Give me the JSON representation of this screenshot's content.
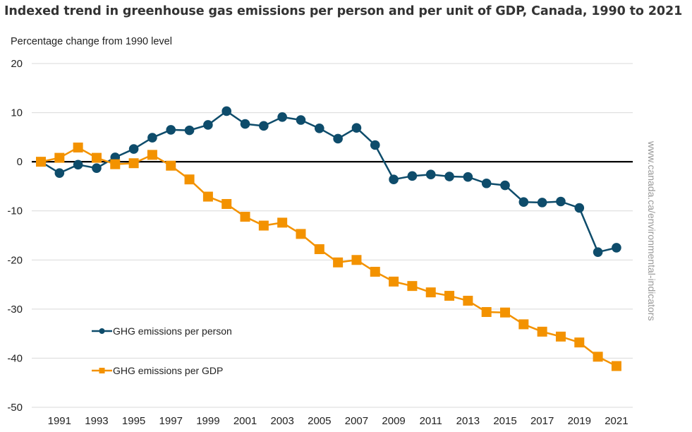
{
  "chart_data": {
    "type": "line",
    "title": "Indexed trend in greenhouse gas emissions per person and per unit of GDP, Canada, 1990 to 2021",
    "ylabel": "Percentage change from 1990 level",
    "xlabel": "",
    "watermark": "www.canada.ca/environmental-indicators",
    "ylim": [
      -50,
      20
    ],
    "yticks": [
      20,
      10,
      0,
      -10,
      -20,
      -30,
      -40,
      -50
    ],
    "ytick_labels": [
      "20",
      "10",
      "0",
      "-10",
      "-20",
      "-30",
      "-40",
      "-50"
    ],
    "xtick_labels": [
      "1991",
      "1993",
      "1995",
      "1997",
      "1999",
      "2001",
      "2003",
      "2005",
      "2007",
      "2009",
      "2011",
      "2013",
      "2015",
      "2017",
      "2019",
      "2021"
    ],
    "grid": true,
    "legend_position": "bottom-left",
    "x": [
      1990,
      1991,
      1992,
      1993,
      1994,
      1995,
      1996,
      1997,
      1998,
      1999,
      2000,
      2001,
      2002,
      2003,
      2004,
      2005,
      2006,
      2007,
      2008,
      2009,
      2010,
      2011,
      2012,
      2013,
      2014,
      2015,
      2016,
      2017,
      2018,
      2019,
      2020,
      2021
    ],
    "series": [
      {
        "name": "GHG emissions per person",
        "color": "#0e4c6b",
        "marker": "circle",
        "values": [
          0,
          -2.3,
          -0.6,
          -1.3,
          0.9,
          2.6,
          4.9,
          6.5,
          6.4,
          7.5,
          10.3,
          7.7,
          7.3,
          9.1,
          8.5,
          6.8,
          4.7,
          6.9,
          3.4,
          -3.6,
          -2.9,
          -2.6,
          -3.0,
          -3.1,
          -4.4,
          -4.8,
          -8.2,
          -8.3,
          -8.1,
          -9.4,
          -18.4,
          -17.5
        ]
      },
      {
        "name": "GHG emissions per GDP",
        "color": "#f39200",
        "marker": "square",
        "values": [
          0,
          0.8,
          2.9,
          0.8,
          -0.5,
          -0.3,
          1.4,
          -0.8,
          -3.6,
          -7.1,
          -8.6,
          -11.2,
          -13.0,
          -12.4,
          -14.7,
          -17.8,
          -20.5,
          -20.0,
          -22.4,
          -24.4,
          -25.3,
          -26.6,
          -27.3,
          -28.3,
          -30.6,
          -30.7,
          -33.1,
          -34.6,
          -35.6,
          -36.8,
          -39.7,
          -41.6
        ]
      }
    ]
  }
}
